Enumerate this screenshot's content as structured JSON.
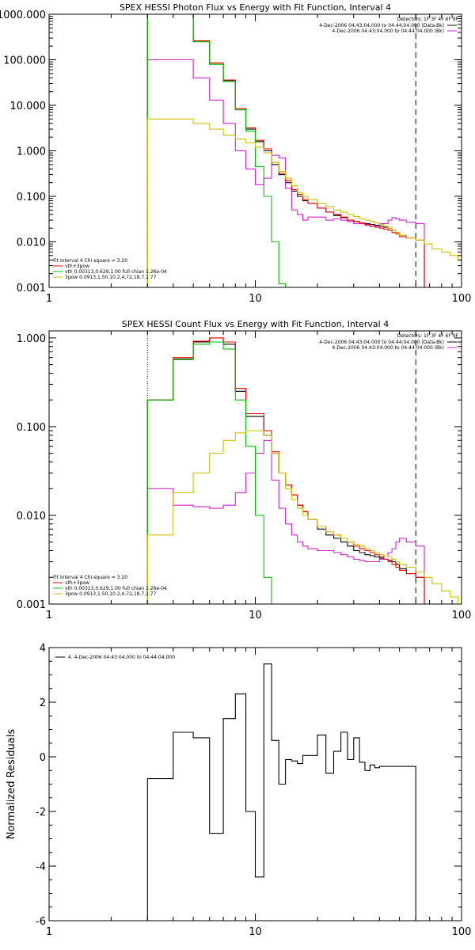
{
  "chart_data": [
    {
      "type": "line",
      "title": "SPEX HESSI Photon Flux vs Energy with Fit Function, Interval 4",
      "xscale": "log",
      "yscale": "log",
      "xlim": [
        1,
        100
      ],
      "ylim": [
        0.001,
        1000
      ],
      "xticks": [
        1,
        10,
        100
      ],
      "xtick_labels": [
        "1",
        "10",
        "100"
      ],
      "yticks": [
        0.001,
        0.01,
        0.1,
        1,
        10,
        100,
        1000
      ],
      "ytick_labels": [
        "0.001",
        "0.010",
        "0.100",
        "1.000",
        "10.000",
        "100.000",
        "1000.000"
      ],
      "vlines": [
        {
          "x": 3,
          "style": "dotted"
        },
        {
          "x": 60,
          "style": "dashed"
        }
      ],
      "legend_top": {
        "header": "Detectors: 1F 3F 4F 6F 9F",
        "entries": [
          {
            "label": "4-Dec-2006 04:43:04.000 to 04:44:04.000 (Data-Bk)",
            "color": "#000000"
          },
          {
            "label": "4-Dec-2006 04:43:04.000 to 04:44:04.000 (Bk)",
            "color": "#d020d0"
          }
        ]
      },
      "legend_bottom": {
        "header": "Fit Interval  4   Chi-square = 3.20",
        "entries": [
          {
            "label": "vth+3pow",
            "color": "#ff0000"
          },
          {
            "label": "vth 0.00313,0.629,1.00   full chian 1.26e-04",
            "color": "#00c000"
          },
          {
            "label": "3pow 0.0913,1.50,10.2,4.72,18.7,1.77",
            "color": "#d0c000"
          }
        ]
      },
      "edges": [
        3,
        4,
        5,
        6,
        7,
        8,
        9,
        10,
        11,
        12,
        13,
        14,
        15,
        16,
        17,
        18,
        20,
        22,
        24,
        26,
        28,
        30,
        32,
        34,
        36,
        38,
        40,
        42,
        44,
        46,
        48,
        50,
        54,
        60,
        66,
        72,
        80,
        88,
        96,
        100
      ],
      "series": [
        {
          "name": "Data-Bk",
          "color": "#000000",
          "values": [
            1000,
            1000,
            250,
            80,
            35,
            8,
            3,
            1.6,
            1,
            0.5,
            0.3,
            0.2,
            0.13,
            0.1,
            0.08,
            0.07,
            0.055,
            0.045,
            0.038,
            0.034,
            0.03,
            0.028,
            0.026,
            0.025,
            0.024,
            0.023,
            0.022,
            0.021,
            0.02,
            0.018,
            0.016,
            0.014,
            0.012,
            0.011
          ]
        },
        {
          "name": "Bk",
          "color": "#d020d0",
          "values": [
            100,
            100,
            40,
            13,
            4,
            1,
            0.4,
            0.18,
            0.25,
            0.8,
            0.7,
            0.15,
            0.05,
            0.04,
            0.03,
            0.035,
            0.035,
            0.03,
            0.032,
            0.03,
            0.028,
            0.025,
            0.025,
            0.023,
            0.022,
            0.022,
            0.025,
            0.025,
            0.03,
            0.034,
            0.032,
            0.03,
            0.027,
            0.025
          ]
        },
        {
          "name": "vth+3pow",
          "color": "#ff0000",
          "values": [
            1000,
            1000,
            260,
            85,
            36,
            8.5,
            3.2,
            1.7,
            1.1,
            0.55,
            0.32,
            0.22,
            0.14,
            0.11,
            0.085,
            0.07,
            0.055,
            0.045,
            0.04,
            0.035,
            0.03,
            0.028,
            0.026,
            0.024,
            0.022,
            0.021,
            0.02,
            0.019,
            0.018,
            0.016,
            0.015,
            0.013,
            0.012,
            0.011
          ]
        },
        {
          "name": "vth",
          "color": "#00c000",
          "values": [
            1000,
            1000,
            250,
            80,
            33,
            8,
            2.7,
            0.45,
            0.1,
            0.01,
            0.0012,
            0.0003
          ]
        },
        {
          "name": "3pow",
          "color": "#d0c000",
          "values": [
            5,
            5,
            4,
            3,
            2.2,
            1.8,
            1.5,
            1.2,
            0.9,
            0.55,
            0.35,
            0.25,
            0.17,
            0.12,
            0.1,
            0.085,
            0.07,
            0.06,
            0.05,
            0.045,
            0.04,
            0.036,
            0.032,
            0.03,
            0.028,
            0.026,
            0.024,
            0.022,
            0.02,
            0.018,
            0.016,
            0.014,
            0.012,
            0.011,
            0.009,
            0.007,
            0.006,
            0.005,
            0.004
          ]
        }
      ]
    },
    {
      "type": "line",
      "title": "SPEX HESSI Count Flux vs Energy with Fit Function, Interval 4",
      "xscale": "log",
      "yscale": "log",
      "xlim": [
        1,
        100
      ],
      "ylim": [
        0.001,
        1.2
      ],
      "xticks": [
        1,
        10,
        100
      ],
      "xtick_labels": [
        "1",
        "10",
        "100"
      ],
      "yticks": [
        0.001,
        0.01,
        0.1,
        1
      ],
      "ytick_labels": [
        "0.001",
        "0.010",
        "0.100",
        "1.000"
      ],
      "vlines": [
        {
          "x": 3,
          "style": "dotted"
        },
        {
          "x": 60,
          "style": "dashed"
        }
      ],
      "legend_top": {
        "header": "Detectors: 1F 3F 4F 6F 9F",
        "entries": [
          {
            "label": "4-Dec-2006 04:43:04.000 to 04:44:04.000 (Data-Bk)",
            "color": "#000000"
          },
          {
            "label": "4-Dec-2006 04:43:04.000 to 04:44:04.000 (Bk)",
            "color": "#d020d0"
          }
        ]
      },
      "legend_bottom": {
        "header": "Fit Interval  4   Chi-square = 3.20",
        "entries": [
          {
            "label": "vth+3pow",
            "color": "#ff0000"
          },
          {
            "label": "vth 0.00313,0.629,1.00   full chian 1.26e-04",
            "color": "#00c000"
          },
          {
            "label": "3pow 0.0913,1.50,10.2,4.72,18.7,1.77",
            "color": "#d0c000"
          }
        ]
      },
      "edges": [
        3,
        4,
        5,
        6,
        7,
        8,
        9,
        10,
        11,
        12,
        13,
        14,
        15,
        16,
        17,
        18,
        20,
        22,
        24,
        26,
        28,
        30,
        32,
        34,
        36,
        38,
        40,
        42,
        44,
        46,
        48,
        50,
        54,
        60,
        66,
        72,
        80,
        88,
        96,
        100
      ],
      "series": [
        {
          "name": "Data-Bk",
          "color": "#000000",
          "values": [
            0.2,
            0.58,
            0.9,
            1.0,
            0.85,
            0.25,
            0.13,
            0.13,
            0.08,
            0.05,
            0.03,
            0.022,
            0.017,
            0.013,
            0.011,
            0.009,
            0.007,
            0.006,
            0.0055,
            0.005,
            0.0045,
            0.004,
            0.0038,
            0.0036,
            0.0035,
            0.0034,
            0.0033,
            0.0032,
            0.0031,
            0.003,
            0.0028,
            0.0025,
            0.0022,
            0.002
          ]
        },
        {
          "name": "Bk",
          "color": "#d020d0",
          "values": [
            0.02,
            0.013,
            0.0125,
            0.012,
            0.013,
            0.018,
            0.03,
            0.05,
            0.07,
            0.025,
            0.012,
            0.008,
            0.006,
            0.005,
            0.0045,
            0.0042,
            0.004,
            0.004,
            0.0038,
            0.0036,
            0.0034,
            0.0032,
            0.0031,
            0.003,
            0.003,
            0.003,
            0.0032,
            0.0035,
            0.0038,
            0.0042,
            0.005,
            0.0055,
            0.005,
            0.0045
          ]
        },
        {
          "name": "vth+3pow",
          "color": "#ff0000",
          "values": [
            0.2,
            0.6,
            0.92,
            1.0,
            0.9,
            0.27,
            0.14,
            0.14,
            0.09,
            0.052,
            0.03,
            0.022,
            0.017,
            0.013,
            0.011,
            0.009,
            0.0075,
            0.0065,
            0.006,
            0.0055,
            0.005,
            0.0045,
            0.0042,
            0.004,
            0.0038,
            0.0036,
            0.0034,
            0.0032,
            0.003,
            0.0028,
            0.0026,
            0.0024,
            0.0022,
            0.002
          ]
        },
        {
          "name": "vth",
          "color": "#00c000",
          "values": [
            0.2,
            0.57,
            0.85,
            0.9,
            0.75,
            0.2,
            0.06,
            0.01,
            0.002,
            0.0005
          ]
        },
        {
          "name": "3pow",
          "color": "#d0c000",
          "values": [
            0.006,
            0.018,
            0.03,
            0.05,
            0.07,
            0.085,
            0.09,
            0.09,
            0.08,
            0.05,
            0.03,
            0.02,
            0.015,
            0.012,
            0.01,
            0.009,
            0.0075,
            0.0065,
            0.006,
            0.0055,
            0.005,
            0.0047,
            0.0045,
            0.0042,
            0.004,
            0.0038,
            0.0036,
            0.0035,
            0.0034,
            0.0032,
            0.003,
            0.0028,
            0.0026,
            0.0023,
            0.002,
            0.0017,
            0.0014,
            0.0012,
            0.001
          ]
        }
      ]
    },
    {
      "type": "line",
      "title": "",
      "ylabel": "Normalized Residuals",
      "xscale": "log",
      "yscale": "linear",
      "xlim": [
        1,
        100
      ],
      "ylim": [
        -6,
        4
      ],
      "xticks": [
        1,
        10,
        100
      ],
      "xtick_labels": [
        "1",
        "10",
        "100"
      ],
      "yticks": [
        -6,
        -4,
        -2,
        0,
        2,
        4
      ],
      "ytick_labels": [
        "-6",
        "-4",
        "-2",
        "0",
        "2",
        "4"
      ],
      "legend_top": {
        "header": "",
        "entries": [
          {
            "label": "4.  4-Dec-2006 04:43:04.000 to 04:44:04.000",
            "color": "#000000"
          }
        ]
      },
      "edges": [
        3,
        4,
        5,
        6,
        7,
        8,
        9,
        10,
        11,
        12,
        13,
        14,
        15,
        16,
        17,
        18,
        20,
        22,
        24,
        26,
        28,
        30,
        32,
        34,
        36,
        38,
        40,
        42,
        44,
        46,
        48,
        50,
        54,
        60
      ],
      "series": [
        {
          "name": "Residuals",
          "color": "#000000",
          "values": [
            -0.8,
            0.9,
            0.7,
            -2.8,
            1.4,
            2.3,
            -2.0,
            -4.4,
            3.4,
            0.6,
            -1.0,
            -0.1,
            -0.15,
            -0.25,
            0.05,
            0.05,
            0.8,
            -0.6,
            0.2,
            0.9,
            -0.1,
            0.7,
            -0.2,
            -0.5,
            -0.3,
            -0.4,
            -0.35,
            -0.35,
            -0.35,
            -0.35,
            -0.35,
            -0.35,
            -0.35
          ]
        }
      ]
    }
  ]
}
